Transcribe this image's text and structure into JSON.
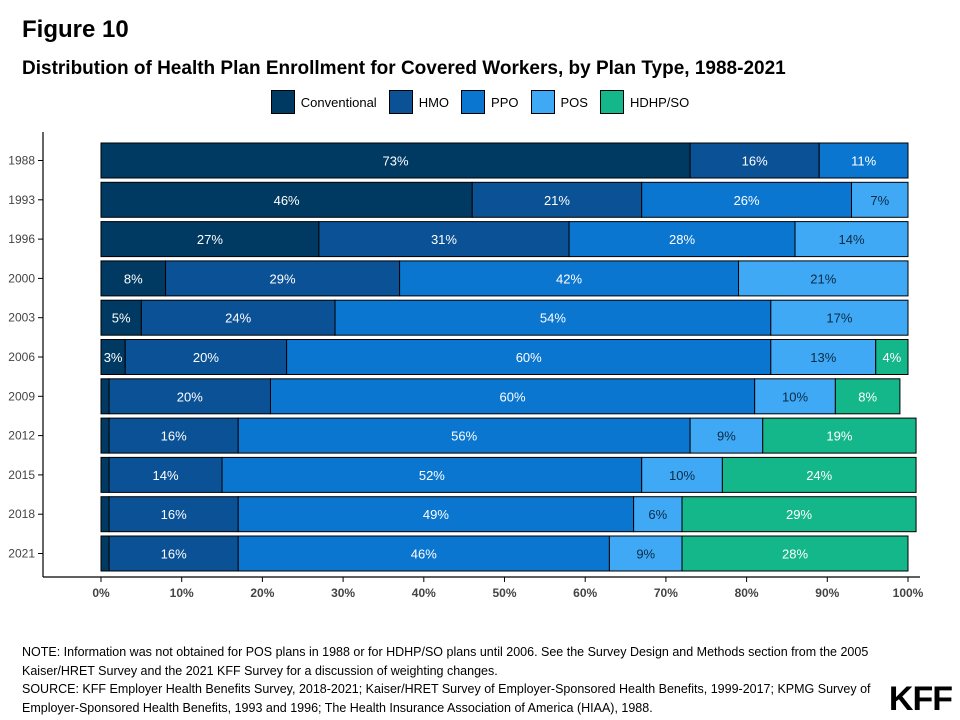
{
  "figure_label": "Figure 10",
  "notes": {
    "note": "NOTE: Information was not obtained for POS plans in 1988 or for HDHP/SO plans until 2006. See the Survey Design and Methods section from the 2005 Kaiser/HRET Survey and the 2021 KFF Survey for a discussion of weighting changes.",
    "source": "SOURCE: KFF Employer Health Benefits Survey, 2018-2021; Kaiser/HRET Survey of Employer-Sponsored Health Benefits, 1999-2017; KPMG Survey of Employer-Sponsored Health Benefits, 1993 and 1996; The Health Insurance Association of America (HIAA), 1988."
  },
  "logo_text": "KFF",
  "chart_data": {
    "type": "bar",
    "orientation": "horizontal",
    "stacked": true,
    "title": "Distribution of Health Plan Enrollment for Covered Workers, by Plan Type, 1988-2021",
    "xlabel": "",
    "ylabel": "",
    "xlim": [
      0,
      100
    ],
    "x_ticks": [
      "0%",
      "10%",
      "20%",
      "30%",
      "40%",
      "50%",
      "60%",
      "70%",
      "80%",
      "90%",
      "100%"
    ],
    "grid": false,
    "legend_position": "top",
    "categories": [
      "1988",
      "1993",
      "1996",
      "2000",
      "2003",
      "2006",
      "2009",
      "2012",
      "2015",
      "2018",
      "2021"
    ],
    "series": [
      {
        "name": "Conventional",
        "color": "#003a63",
        "values": [
          73,
          46,
          27,
          8,
          5,
          3,
          1,
          1,
          1,
          1,
          1
        ],
        "labels": [
          "73%",
          "46%",
          "27%",
          "8%",
          "5%",
          "3%",
          "",
          "",
          "",
          "",
          ""
        ]
      },
      {
        "name": "HMO",
        "color": "#0b5196",
        "values": [
          16,
          21,
          31,
          29,
          24,
          20,
          20,
          16,
          14,
          16,
          16
        ],
        "labels": [
          "16%",
          "21%",
          "31%",
          "29%",
          "24%",
          "20%",
          "20%",
          "16%",
          "14%",
          "16%",
          "16%"
        ]
      },
      {
        "name": "PPO",
        "color": "#0a76cf",
        "values": [
          11,
          26,
          28,
          42,
          54,
          60,
          60,
          56,
          52,
          49,
          46
        ],
        "labels": [
          "11%",
          "26%",
          "28%",
          "42%",
          "54%",
          "60%",
          "60%",
          "56%",
          "52%",
          "49%",
          "46%"
        ]
      },
      {
        "name": "POS",
        "color": "#3fa9f5",
        "values": [
          0,
          7,
          14,
          21,
          17,
          13,
          10,
          9,
          10,
          6,
          9
        ],
        "labels": [
          "",
          "7%",
          "14%",
          "21%",
          "17%",
          "13%",
          "10%",
          "9%",
          "10%",
          "6%",
          "9%"
        ]
      },
      {
        "name": "HDHP/SO",
        "color": "#14b789",
        "values": [
          0,
          0,
          0,
          0,
          0,
          4,
          8,
          19,
          24,
          29,
          28
        ],
        "labels": [
          "",
          "",
          "",
          "",
          "",
          "4%",
          "8%",
          "19%",
          "24%",
          "29%",
          "28%"
        ]
      }
    ]
  }
}
